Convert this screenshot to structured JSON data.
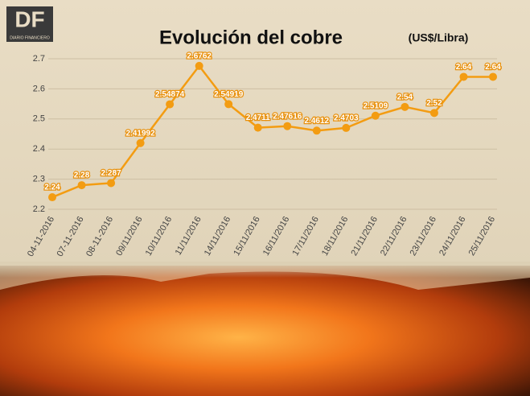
{
  "logo": {
    "text": "DF",
    "subtitle": "DIARIO FINANCIERO"
  },
  "chart_data": {
    "type": "line",
    "title": "Evolución del cobre",
    "subtitle": "(US$/Libra)",
    "categories": [
      "04-11-2016",
      "07-11-2016",
      "08-11-2016",
      "09/11/2016",
      "10/11/2016",
      "11/11/2016",
      "14/11/2016",
      "15/11/2016",
      "16/11/2016",
      "17/11/2016",
      "18/11/2016",
      "21/11/2016",
      "22/11/2016",
      "23/11/2016",
      "24/11/2016",
      "25/11/2016"
    ],
    "values": [
      2.24,
      2.28,
      2.287,
      2.41992,
      2.54874,
      2.6762,
      2.54919,
      2.4711,
      2.47616,
      2.4612,
      2.4703,
      2.5109,
      2.54,
      2.52,
      2.64,
      2.64
    ],
    "color": "#f39c12",
    "ylim": [
      2.2,
      2.7
    ],
    "yticks": [
      2.2,
      2.3,
      2.4,
      2.5,
      2.6,
      2.7
    ],
    "grid": true
  }
}
